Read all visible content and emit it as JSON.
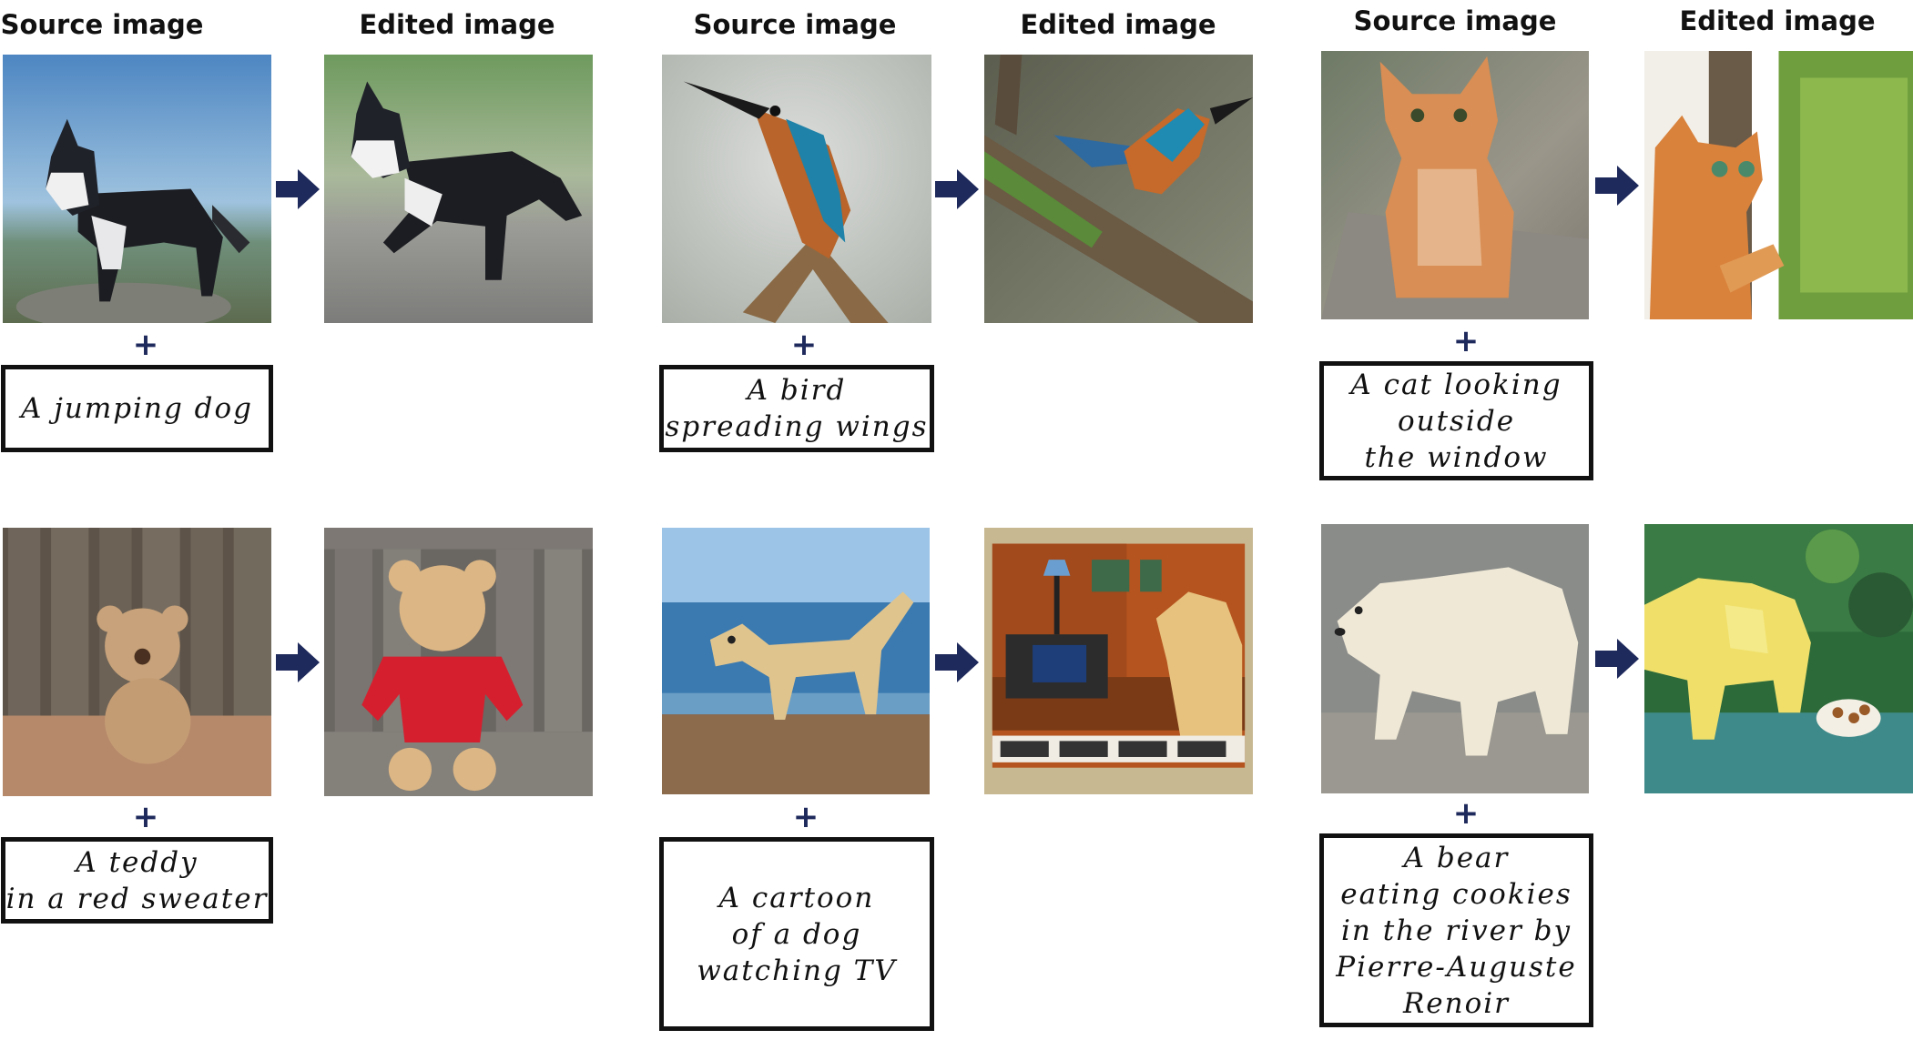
{
  "headers": {
    "source": "Source image",
    "edited": "Edited image"
  },
  "plus_symbol": "+",
  "colors": {
    "arrow": "#1f2a5c",
    "prompt_border": "#111111"
  },
  "examples": [
    {
      "prompt": "A jumping dog",
      "source_subject": "husky standing on rock",
      "edited_subject": "husky jumping"
    },
    {
      "prompt": "A bird\nspreading wings",
      "source_subject": "kingfisher perched on branch",
      "edited_subject": "kingfisher spreading wings"
    },
    {
      "prompt": "A cat looking\noutside\nthe window",
      "source_subject": "orange tabby cat sitting",
      "edited_subject": "cat at window"
    },
    {
      "prompt": "A teddy\nin a red sweater",
      "source_subject": "teddy bear against wooden fence",
      "edited_subject": "teddy bear in red sweater"
    },
    {
      "prompt": "A cartoon\nof a dog\nwatching TV",
      "source_subject": "golden retriever on beach",
      "edited_subject": "cartoon dog watching TV"
    },
    {
      "prompt": "A bear\neating cookies\nin the river by\nPierre-Auguste\nRenoir",
      "source_subject": "polar bear on rocks",
      "edited_subject": "Renoir-style bear eating cookies"
    }
  ]
}
